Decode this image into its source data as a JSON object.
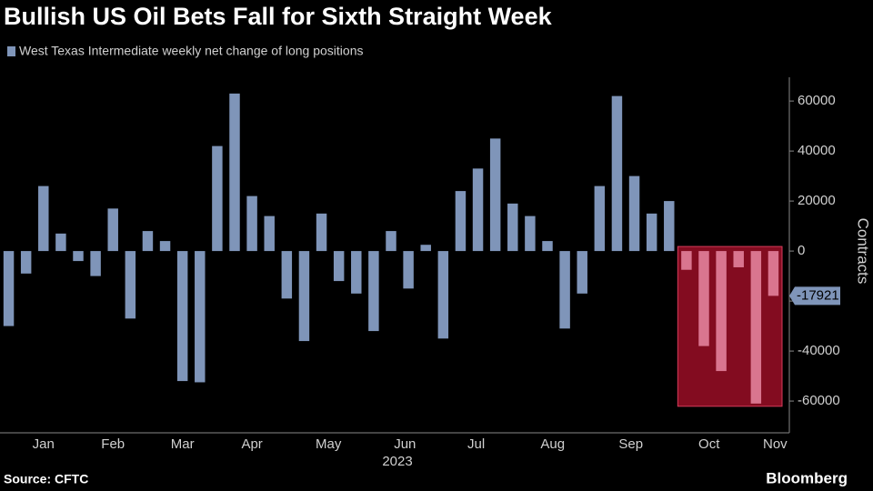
{
  "chart_data": {
    "type": "bar",
    "title": "Bullish US Oil Bets Fall for Sixth Straight Week",
    "series": [
      {
        "name": "West Texas Intermediate weekly net change of long positions",
        "color": "#7f95b9",
        "values": [
          -30000,
          -9000,
          26000,
          7000,
          -4000,
          -10000,
          17000,
          -27000,
          8000,
          4000,
          -52000,
          -52500,
          42000,
          63000,
          22000,
          14000,
          -19000,
          -36000,
          15000,
          -12000,
          -17000,
          -32000,
          8000,
          -15000,
          2500,
          -35000,
          24000,
          33000,
          45000,
          19000,
          14000,
          4000,
          -31000,
          -17000,
          26000,
          62000,
          30000,
          15000,
          20000,
          -7500,
          -38000,
          -48000,
          -6500,
          -61000,
          -17921
        ]
      }
    ],
    "xlim": [
      -0.5,
      44.5
    ],
    "xticks": [
      {
        "value": 2,
        "label": "Jan"
      },
      {
        "value": 6,
        "label": "Feb"
      },
      {
        "value": 10,
        "label": "Mar"
      },
      {
        "value": 14,
        "label": "Apr"
      },
      {
        "value": 18.4,
        "label": "May"
      },
      {
        "value": 22.8,
        "label": "Jun"
      },
      {
        "value": 26.9,
        "label": "Jul"
      },
      {
        "value": 31.3,
        "label": "Aug"
      },
      {
        "value": 35.8,
        "label": "Sep"
      },
      {
        "value": 40.3,
        "label": "Oct"
      },
      {
        "value": 44.1,
        "label": "Nov"
      }
    ],
    "x_label": "2023",
    "ylim": [
      -72700,
      69500
    ],
    "yticks": [
      -60000,
      -40000,
      -20000,
      0,
      20000,
      40000,
      60000
    ],
    "y_label": "Contracts",
    "highlight": {
      "start": 39,
      "color": "#8b0d22",
      "bar_color": "#d9758f"
    },
    "source": "Source: CFTC",
    "brand": "Bloomberg"
  }
}
